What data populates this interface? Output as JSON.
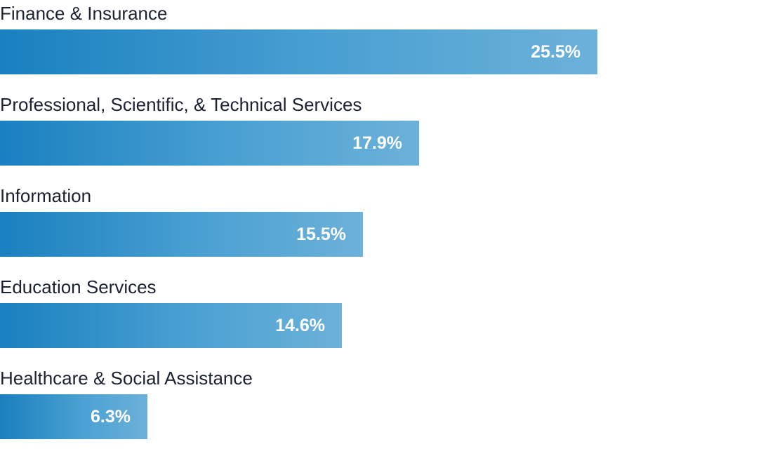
{
  "chart_data": {
    "type": "bar",
    "orientation": "horizontal",
    "categories": [
      "Finance & Insurance",
      "Professional, Scientific, & Technical Services",
      "Information",
      "Education Services",
      "Healthcare & Social Assistance"
    ],
    "values": [
      25.5,
      17.9,
      15.5,
      14.6,
      6.3
    ],
    "value_labels": [
      "25.5%",
      "17.9%",
      "15.5%",
      "14.6%",
      "6.3%"
    ],
    "unit": "%",
    "title": "",
    "xlabel": "",
    "ylabel": "",
    "xlim": [
      0,
      33.1
    ],
    "grid": false,
    "legend": "none",
    "colors": {
      "bar_start": "#1a80c0",
      "bar_end": "#6cb1da",
      "value_text": "#ffffff",
      "category_text": "#1c2233"
    }
  }
}
